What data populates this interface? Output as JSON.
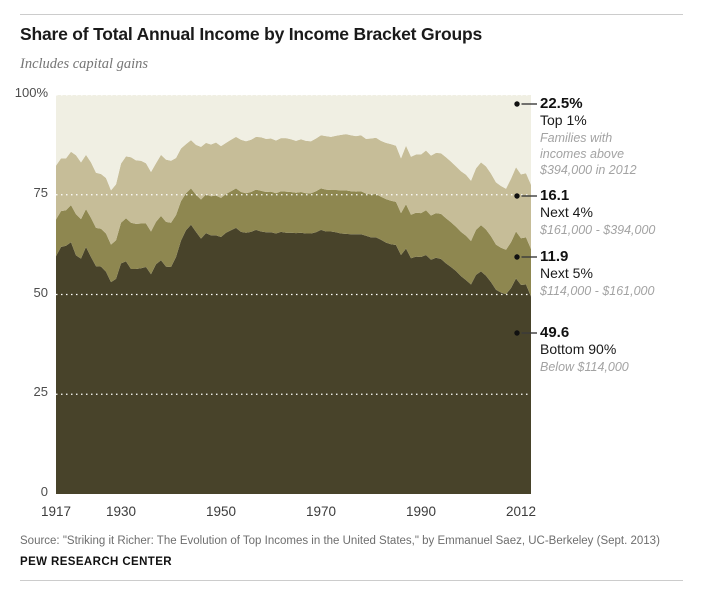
{
  "header": {
    "title": "Share of Total Annual Income by Income Bracket Groups",
    "subtitle": "Includes capital gains"
  },
  "chart_data": {
    "type": "area",
    "stacked": true,
    "x_range": [
      1917,
      2012
    ],
    "ylim": [
      0,
      100
    ],
    "xticks": [
      "1917",
      "1930",
      "1950",
      "1970",
      "1990",
      "2012"
    ],
    "yticks": [
      "100%",
      "75",
      "50",
      "25",
      "0"
    ],
    "gridlines_percent": [
      25,
      50,
      75,
      100
    ],
    "grid_style": "dotted-white",
    "legend_position": "right-annotations",
    "series": [
      {
        "name": "Top 1%",
        "color": "#f0efe3",
        "values": [
          17.7,
          15.9,
          15.9,
          14.2,
          15.1,
          16.9,
          15.0,
          16.9,
          19.5,
          19.8,
          20.8,
          23.9,
          22.4,
          17.2,
          15.4,
          15.6,
          16.4,
          16.5,
          17.1,
          19.3,
          17.1,
          15.0,
          16.2,
          16.5,
          15.8,
          13.4,
          12.3,
          11.3,
          12.5,
          13.0,
          12.0,
          12.4,
          11.9,
          12.8,
          12.0,
          11.2,
          10.5,
          11.2,
          11.6,
          11.2,
          10.5,
          10.6,
          11.0,
          10.9,
          11.4,
          10.8,
          10.8,
          11.1,
          11.5,
          11.1,
          11.5,
          11.6,
          10.9,
          10.1,
          10.3,
          10.5,
          10.2,
          10.0,
          9.8,
          10.1,
          10.3,
          10.1,
          11.0,
          10.9,
          10.7,
          11.5,
          12.0,
          12.3,
          12.7,
          15.9,
          12.7,
          15.5,
          14.9,
          14.9,
          13.9,
          15.2,
          14.5,
          14.6,
          15.6,
          16.7,
          17.9,
          19.1,
          20.0,
          21.5,
          18.4,
          16.9,
          17.9,
          19.7,
          21.9,
          22.8,
          23.5,
          21.0,
          18.1,
          19.9,
          19.6,
          22.5
        ]
      },
      {
        "name": "Next 4%",
        "color": "#c6bd98",
        "values": [
          13.5,
          13.2,
          13.0,
          13.4,
          14.8,
          14.2,
          13.6,
          13.9,
          13.8,
          13.7,
          13.9,
          13.6,
          14.0,
          14.8,
          15.5,
          16.4,
          15.9,
          15.7,
          15.1,
          14.9,
          14.7,
          15.3,
          15.6,
          15.5,
          14.3,
          13.2,
          12.3,
          12.1,
          12.5,
          13.2,
          12.9,
          13.0,
          13.3,
          13.0,
          12.8,
          12.9,
          12.9,
          13.1,
          13.0,
          13.1,
          13.2,
          13.4,
          13.3,
          13.3,
          13.2,
          13.3,
          13.4,
          13.2,
          13.0,
          13.2,
          13.1,
          13.0,
          13.2,
          13.3,
          13.4,
          13.3,
          13.6,
          13.9,
          14.1,
          14.0,
          13.9,
          14.0,
          13.7,
          14.0,
          14.1,
          14.0,
          14.1,
          14.2,
          14.1,
          13.7,
          14.7,
          14.5,
          14.6,
          14.7,
          15.0,
          15.0,
          15.1,
          15.2,
          15.3,
          15.2,
          15.1,
          15.2,
          15.3,
          15.1,
          15.4,
          15.7,
          15.8,
          15.7,
          15.6,
          15.5,
          15.3,
          15.9,
          16.1,
          16.0,
          16.1,
          16.1
        ]
      },
      {
        "name": "Next 5%",
        "color": "#8e8750",
        "values": [
          9.2,
          9.0,
          8.9,
          9.3,
          10.3,
          9.9,
          9.5,
          9.8,
          9.6,
          9.5,
          9.6,
          9.4,
          9.7,
          10.2,
          10.8,
          11.6,
          11.3,
          11.2,
          10.9,
          10.7,
          10.6,
          11.1,
          11.2,
          11.1,
          10.5,
          9.9,
          9.3,
          9.1,
          9.3,
          9.8,
          9.7,
          9.8,
          10.0,
          9.8,
          9.7,
          9.8,
          9.9,
          10.0,
          9.9,
          10.0,
          10.1,
          10.2,
          10.1,
          10.2,
          10.1,
          10.2,
          10.3,
          10.2,
          10.1,
          10.2,
          10.1,
          10.1,
          10.3,
          10.4,
          10.5,
          10.4,
          10.6,
          10.8,
          10.9,
          10.8,
          10.7,
          10.8,
          10.6,
          10.8,
          10.9,
          10.8,
          10.9,
          10.9,
          10.8,
          10.5,
          11.1,
          10.9,
          11.0,
          11.0,
          11.2,
          11.1,
          11.2,
          11.3,
          11.3,
          11.2,
          11.1,
          11.1,
          11.1,
          10.9,
          11.3,
          11.6,
          11.6,
          11.5,
          11.3,
          11.2,
          11.1,
          11.5,
          11.8,
          11.7,
          11.8,
          11.9
        ]
      },
      {
        "name": "Bottom 90%",
        "color": "#48432a",
        "values": null,
        "note": "remainder: 100 minus sum of the three series above"
      }
    ]
  },
  "annotations": [
    {
      "value": "22.5%",
      "label": "Top 1%",
      "desc": [
        "Families with",
        "incomes above",
        "$394,000 in 2012"
      ]
    },
    {
      "value": "16.1",
      "label": "Next 4%",
      "desc": [
        "$161,000 - $394,000"
      ]
    },
    {
      "value": "11.9",
      "label": "Next 5%",
      "desc": [
        "$114,000 - $161,000"
      ]
    },
    {
      "value": "49.6",
      "label": "Bottom 90%",
      "desc": [
        "Below $114,000"
      ]
    }
  ],
  "footer": {
    "source": "Source: \"Striking it Richer: The Evolution of Top Incomes in the United States,\" by Emmanuel Saez, UC-Berkeley (Sept. 2013)",
    "brand": "PEW RESEARCH CENTER"
  },
  "colors": {
    "top1": "#f0efe3",
    "next4": "#c6bd98",
    "next5": "#8e8750",
    "bottom90": "#48432a",
    "gridline": "#ffffff",
    "rule": "#cccccc",
    "dot": "#111111",
    "leader": "#3a3a3a"
  }
}
